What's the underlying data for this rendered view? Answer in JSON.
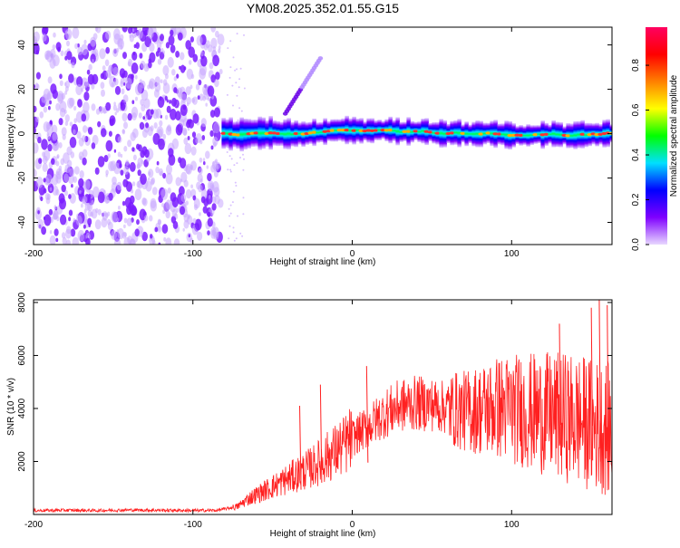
{
  "title": "YM08.2025.352.01.55.G15",
  "chart_data": [
    {
      "type": "heatmap",
      "title": "YM08.2025.352.01.55.G15",
      "xlabel": "Height of straight line (km)",
      "ylabel": "Frequency (Hz)",
      "xlim": [
        -200,
        163
      ],
      "ylim": [
        -50,
        48
      ],
      "xticks": [
        -200,
        -100,
        0,
        100
      ],
      "yticks": [
        -40,
        -20,
        0,
        20,
        40
      ],
      "colorbar": {
        "label": "Normalized spectral amplitude",
        "range": [
          0,
          0.97
        ],
        "ticks": [
          0.0,
          0.2,
          0.4,
          0.6,
          0.8
        ],
        "colors": [
          "#e8d8ff",
          "#7f00ff",
          "#0000ff",
          "#00e0ff",
          "#00ff00",
          "#ffff00",
          "#ff8000",
          "#ff0000",
          "#ff0060"
        ]
      },
      "regions": [
        {
          "name": "scattered noise",
          "x": [
            -200,
            -82
          ],
          "y": [
            -50,
            48
          ],
          "amplitude": 0.1
        },
        {
          "name": "signal band",
          "x": [
            -82,
            163
          ],
          "center_freq": 0,
          "width_hz": 10,
          "amplitude": 0.9
        },
        {
          "name": "feature streak",
          "x": [
            -42,
            -20
          ],
          "y": [
            9,
            34
          ],
          "amplitude": 0.25
        }
      ]
    },
    {
      "type": "line",
      "xlabel": "Height of straight line (km)",
      "ylabel": "SNR (10 * v/v)",
      "xlim": [
        -200,
        163
      ],
      "ylim": [
        0,
        8100
      ],
      "xticks": [
        -200,
        -100,
        0,
        100
      ],
      "yticks": [
        2000,
        4000,
        6000,
        8000
      ],
      "color": "#ff2020",
      "series": [
        {
          "name": "SNR",
          "x": [
            -200,
            -180,
            -160,
            -140,
            -120,
            -100,
            -85,
            -72,
            -65,
            -55,
            -45,
            -35,
            -25,
            -15,
            -5,
            0,
            10,
            20,
            30,
            40,
            50,
            60,
            70,
            80,
            90,
            100,
            110,
            120,
            130,
            140,
            150,
            163
          ],
          "values": [
            150,
            160,
            150,
            170,
            160,
            150,
            155,
            300,
            600,
            900,
            1200,
            1500,
            1800,
            2200,
            2600,
            2900,
            3300,
            3800,
            4100,
            4200,
            4150,
            4000,
            3900,
            3950,
            4050,
            4000,
            3900,
            3800,
            3700,
            3600,
            3400,
            3200
          ],
          "peaks": {
            "x": [
              -33,
              -20,
              9,
              130,
              150,
              155,
              160
            ],
            "values": [
              4100,
              4900,
              5600,
              7200,
              7800,
              8100,
              7900
            ]
          }
        }
      ]
    }
  ]
}
